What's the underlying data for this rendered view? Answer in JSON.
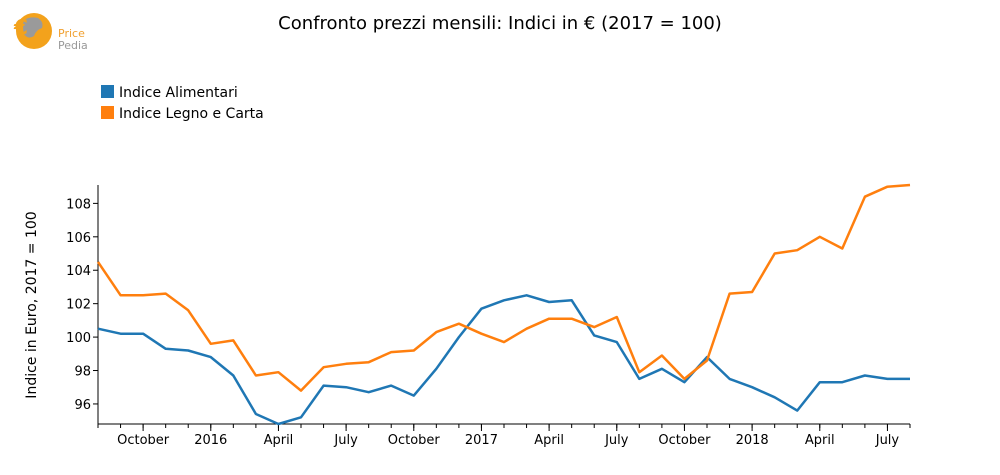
{
  "chart_data": {
    "type": "line",
    "title": "Confronto prezzi mensili: Indici in € (2017 = 100)",
    "xlabel": "",
    "ylabel": "Indice in Euro, 2017 = 100",
    "x": [
      "2015-08",
      "2015-09",
      "2015-10",
      "2015-11",
      "2015-12",
      "2016-01",
      "2016-02",
      "2016-03",
      "2016-04",
      "2016-05",
      "2016-06",
      "2016-07",
      "2016-08",
      "2016-09",
      "2016-10",
      "2016-11",
      "2016-12",
      "2017-01",
      "2017-02",
      "2017-03",
      "2017-04",
      "2017-05",
      "2017-06",
      "2017-07",
      "2017-08",
      "2017-09",
      "2017-10",
      "2017-11",
      "2017-12",
      "2018-01",
      "2018-02",
      "2018-03",
      "2018-04",
      "2018-05",
      "2018-06",
      "2018-07",
      "2018-08"
    ],
    "x_ticks": [
      {
        "date": "2015-10",
        "label": "October"
      },
      {
        "date": "2016-01",
        "label": "2016"
      },
      {
        "date": "2016-04",
        "label": "April"
      },
      {
        "date": "2016-07",
        "label": "July"
      },
      {
        "date": "2016-10",
        "label": "October"
      },
      {
        "date": "2017-01",
        "label": "2017"
      },
      {
        "date": "2017-04",
        "label": "April"
      },
      {
        "date": "2017-07",
        "label": "July"
      },
      {
        "date": "2017-10",
        "label": "October"
      },
      {
        "date": "2018-01",
        "label": "2018"
      },
      {
        "date": "2018-04",
        "label": "April"
      },
      {
        "date": "2018-07",
        "label": "July"
      }
    ],
    "y_ticks": [
      96,
      98,
      100,
      102,
      104,
      106,
      108
    ],
    "ylim": [
      94.8,
      109.1
    ],
    "legend_position": "top-left",
    "series": [
      {
        "name": "Indice Alimentari",
        "color": "#1f77b4",
        "values": [
          100.5,
          100.2,
          100.2,
          99.3,
          99.2,
          98.8,
          97.7,
          95.4,
          94.8,
          95.2,
          97.1,
          97.0,
          96.7,
          97.1,
          96.5,
          98.1,
          100.0,
          101.7,
          102.2,
          102.5,
          102.1,
          102.2,
          100.1,
          99.7,
          97.5,
          98.1,
          97.3,
          98.8,
          97.5,
          97.0,
          96.4,
          95.6,
          97.3,
          97.3,
          97.7,
          97.5,
          97.5
        ]
      },
      {
        "name": "Indice Legno e Carta",
        "color": "#ff7f0e",
        "values": [
          104.5,
          102.5,
          102.5,
          102.6,
          101.6,
          99.6,
          99.8,
          97.7,
          97.9,
          96.8,
          98.2,
          98.4,
          98.5,
          99.1,
          99.2,
          100.3,
          100.8,
          100.2,
          99.7,
          100.5,
          101.1,
          101.1,
          100.6,
          101.2,
          97.9,
          98.9,
          97.5,
          98.6,
          102.6,
          102.7,
          105.0,
          105.2,
          106.0,
          105.3,
          108.4,
          109.0,
          109.1
        ]
      }
    ]
  },
  "logo": {
    "line1": "Price",
    "line2": "Pedia",
    "color_primary": "#f0a030",
    "color_secondary": "#999999"
  }
}
